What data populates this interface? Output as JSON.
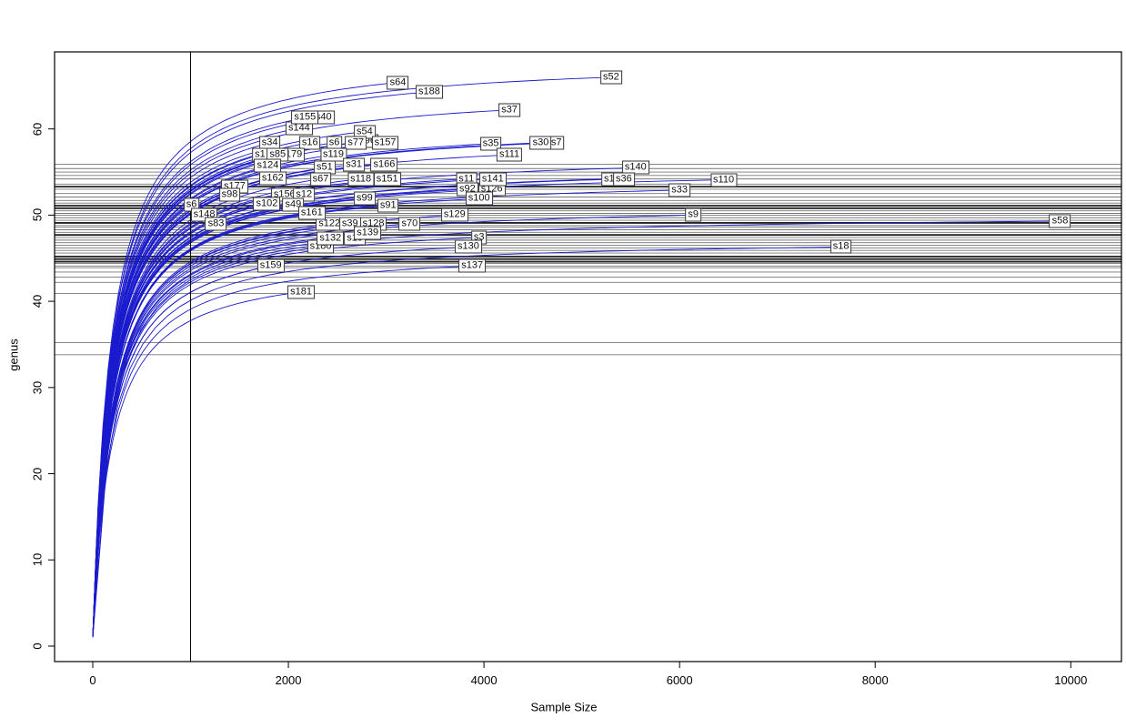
{
  "chart_data": {
    "type": "line",
    "description": "Rarefaction curves per sample (blue), vertical reference line at sample size 1000, horizontal reference lines at rarefied richness values",
    "title": "",
    "xlabel": "Sample Size",
    "ylabel": "genus",
    "x_ticks": [
      0,
      2000,
      4000,
      6000,
      8000,
      10000
    ],
    "y_ticks": [
      0,
      10,
      20,
      30,
      40,
      50,
      60
    ],
    "xlim": [
      -390,
      10520
    ],
    "ylim": [
      -1.8,
      68.9
    ],
    "grid": false,
    "legend": "none",
    "curve_color": "#1a1acd",
    "refline_color": "#000000",
    "hline_color": "#777777",
    "hline_dark_color": "#222222",
    "vline_x": 1000,
    "curve_start": {
      "sample": 0,
      "genus": 1
    },
    "series": [
      {
        "label": "s34",
        "end_sample": 1810,
        "end_genus": 58.4,
        "partial": true
      },
      {
        "label": "s96",
        "end_sample": 2810,
        "end_genus": 58.6,
        "partial": true
      },
      {
        "label": "s40",
        "end_sample": 2360,
        "end_genus": 61.3,
        "partial": true
      },
      {
        "label": "s144",
        "end_sample": 2110,
        "end_genus": 60.1
      },
      {
        "label": "s155",
        "end_sample": 2170,
        "end_genus": 61.3
      },
      {
        "label": "s54",
        "end_sample": 2780,
        "end_genus": 59.7
      },
      {
        "label": "s6",
        "end_sample": 2470,
        "end_genus": 58.4,
        "partial": true
      },
      {
        "label": "s16",
        "end_sample": 2220,
        "end_genus": 58.4
      },
      {
        "label": "s77",
        "end_sample": 2690,
        "end_genus": 58.4
      },
      {
        "label": "s157",
        "end_sample": 2990,
        "end_genus": 58.4
      },
      {
        "label": "s1",
        "end_sample": 1710,
        "end_genus": 57.0,
        "partial": true
      },
      {
        "label": "s179",
        "end_sample": 2030,
        "end_genus": 57.0,
        "partial": true
      },
      {
        "label": "s85",
        "end_sample": 1890,
        "end_genus": 57.0
      },
      {
        "label": "s119",
        "end_sample": 2460,
        "end_genus": 57.0
      },
      {
        "label": "s64",
        "end_sample": 3120,
        "end_genus": 65.4
      },
      {
        "label": "s188",
        "end_sample": 3440,
        "end_genus": 64.3
      },
      {
        "label": "s52",
        "end_sample": 5300,
        "end_genus": 66.0
      },
      {
        "label": "s37",
        "end_sample": 4260,
        "end_genus": 62.2
      },
      {
        "label": "s31",
        "end_sample": 2670,
        "end_genus": 55.9
      },
      {
        "label": "s166",
        "end_sample": 2980,
        "end_genus": 55.9
      },
      {
        "label": "s124",
        "end_sample": 1790,
        "end_genus": 55.7,
        "partial": true
      },
      {
        "label": "s51",
        "end_sample": 2370,
        "end_genus": 55.5
      },
      {
        "label": "s162",
        "end_sample": 1840,
        "end_genus": 54.3
      },
      {
        "label": "s67",
        "end_sample": 2330,
        "end_genus": 54.2
      },
      {
        "label": "s118",
        "end_sample": 2740,
        "end_genus": 54.2
      },
      {
        "label": "s151",
        "end_sample": 3010,
        "end_genus": 54.2
      },
      {
        "label": "s35",
        "end_sample": 4070,
        "end_genus": 58.3
      },
      {
        "label": "s111",
        "end_sample": 4260,
        "end_genus": 57.0
      },
      {
        "label": "s7",
        "end_sample": 4740,
        "end_genus": 58.4,
        "partial": true
      },
      {
        "label": "s30",
        "end_sample": 4580,
        "end_genus": 58.4
      },
      {
        "label": "s140",
        "end_sample": 5550,
        "end_genus": 55.5
      },
      {
        "label": "s1",
        "end_sample": 5280,
        "end_genus": 54.2,
        "partial": true
      },
      {
        "label": "s36",
        "end_sample": 5430,
        "end_genus": 54.2
      },
      {
        "label": "s33",
        "end_sample": 6000,
        "end_genus": 52.9
      },
      {
        "label": "s110",
        "end_sample": 6450,
        "end_genus": 54.1
      },
      {
        "label": "s126",
        "end_sample": 4080,
        "end_genus": 53.0,
        "partial": true
      },
      {
        "label": "s11",
        "end_sample": 3820,
        "end_genus": 54.2
      },
      {
        "label": "s92",
        "end_sample": 3830,
        "end_genus": 53.0
      },
      {
        "label": "s141",
        "end_sample": 4090,
        "end_genus": 54.2
      },
      {
        "label": "s100",
        "end_sample": 3950,
        "end_genus": 51.9
      },
      {
        "label": "s177",
        "end_sample": 1450,
        "end_genus": 53.3
      },
      {
        "label": "s98",
        "end_sample": 1400,
        "end_genus": 52.4
      },
      {
        "label": "s156",
        "end_sample": 1960,
        "end_genus": 52.4,
        "partial": true
      },
      {
        "label": "s12",
        "end_sample": 2160,
        "end_genus": 52.4
      },
      {
        "label": "s49",
        "end_sample": 2050,
        "end_genus": 51.2,
        "partial": true
      },
      {
        "label": "s6",
        "end_sample": 1010,
        "end_genus": 51.2
      },
      {
        "label": "s102",
        "end_sample": 1780,
        "end_genus": 51.3
      },
      {
        "label": "s148",
        "end_sample": 1140,
        "end_genus": 50.0
      },
      {
        "label": "s99",
        "end_sample": 2780,
        "end_genus": 51.9
      },
      {
        "label": "s91",
        "end_sample": 3020,
        "end_genus": 51.1
      },
      {
        "label": "s9",
        "end_sample": 6140,
        "end_genus": 50.0
      },
      {
        "label": "s83",
        "end_sample": 1260,
        "end_genus": 49.0
      },
      {
        "label": "s129",
        "end_sample": 3700,
        "end_genus": 50.0
      },
      {
        "label": "s58",
        "end_sample": 9890,
        "end_genus": 49.3
      },
      {
        "label": "s122",
        "end_sample": 2420,
        "end_genus": 49.0
      },
      {
        "label": "s39",
        "end_sample": 2630,
        "end_genus": 49.0
      },
      {
        "label": "s128",
        "end_sample": 2870,
        "end_genus": 49.0
      },
      {
        "label": "s19",
        "end_sample": 2680,
        "end_genus": 47.3
      },
      {
        "label": "s161",
        "end_sample": 2240,
        "end_genus": 50.3
      },
      {
        "label": "s139",
        "end_sample": 2810,
        "end_genus": 47.9
      },
      {
        "label": "s180",
        "end_sample": 2330,
        "end_genus": 46.3
      },
      {
        "label": "s132",
        "end_sample": 2430,
        "end_genus": 47.3
      },
      {
        "label": "s70",
        "end_sample": 3240,
        "end_genus": 49.0
      },
      {
        "label": "s3",
        "end_sample": 3950,
        "end_genus": 47.4
      },
      {
        "label": "s130",
        "end_sample": 3840,
        "end_genus": 46.3
      },
      {
        "label": "s18",
        "end_sample": 7650,
        "end_genus": 46.3
      },
      {
        "label": "s137",
        "end_sample": 3880,
        "end_genus": 44.1
      },
      {
        "label": "s159",
        "end_sample": 1820,
        "end_genus": 44.1
      },
      {
        "label": "s181",
        "end_sample": 2130,
        "end_genus": 41.1
      }
    ],
    "hlines_genus": [
      {
        "y": 55.9,
        "w": 1
      },
      {
        "y": 55.4,
        "w": 1
      },
      {
        "y": 55.0,
        "w": 1
      },
      {
        "y": 54.6,
        "w": 1
      },
      {
        "y": 54.2,
        "w": 1
      },
      {
        "y": 53.6,
        "w": 1
      },
      {
        "y": 53.3,
        "w": 2
      },
      {
        "y": 53.0,
        "w": 1
      },
      {
        "y": 52.5,
        "w": 1
      },
      {
        "y": 52.1,
        "w": 1
      },
      {
        "y": 51.7,
        "w": 1
      },
      {
        "y": 51.4,
        "w": 1
      },
      {
        "y": 51.1,
        "w": 2
      },
      {
        "y": 50.8,
        "w": 2
      },
      {
        "y": 50.5,
        "w": 1
      },
      {
        "y": 50.2,
        "w": 1
      },
      {
        "y": 50.0,
        "w": 1
      },
      {
        "y": 49.7,
        "w": 1
      },
      {
        "y": 49.4,
        "w": 1
      },
      {
        "y": 49.1,
        "w": 2
      },
      {
        "y": 48.8,
        "w": 1
      },
      {
        "y": 48.6,
        "w": 1
      },
      {
        "y": 48.3,
        "w": 1
      },
      {
        "y": 48.0,
        "w": 1
      },
      {
        "y": 47.7,
        "w": 2
      },
      {
        "y": 47.4,
        "w": 1
      },
      {
        "y": 47.1,
        "w": 1
      },
      {
        "y": 46.8,
        "w": 1
      },
      {
        "y": 46.5,
        "w": 1
      },
      {
        "y": 46.2,
        "w": 1
      },
      {
        "y": 45.9,
        "w": 1
      },
      {
        "y": 45.6,
        "w": 1
      },
      {
        "y": 45.2,
        "w": 2
      },
      {
        "y": 44.9,
        "w": 2
      },
      {
        "y": 44.6,
        "w": 2
      },
      {
        "y": 44.4,
        "w": 1
      },
      {
        "y": 44.1,
        "w": 1
      },
      {
        "y": 43.9,
        "w": 1
      },
      {
        "y": 43.4,
        "w": 1
      },
      {
        "y": 42.8,
        "w": 1
      },
      {
        "y": 42.2,
        "w": 1
      },
      {
        "y": 40.9,
        "w": 1
      },
      {
        "y": 35.2,
        "w": 1
      },
      {
        "y": 33.8,
        "w": 1
      }
    ]
  }
}
